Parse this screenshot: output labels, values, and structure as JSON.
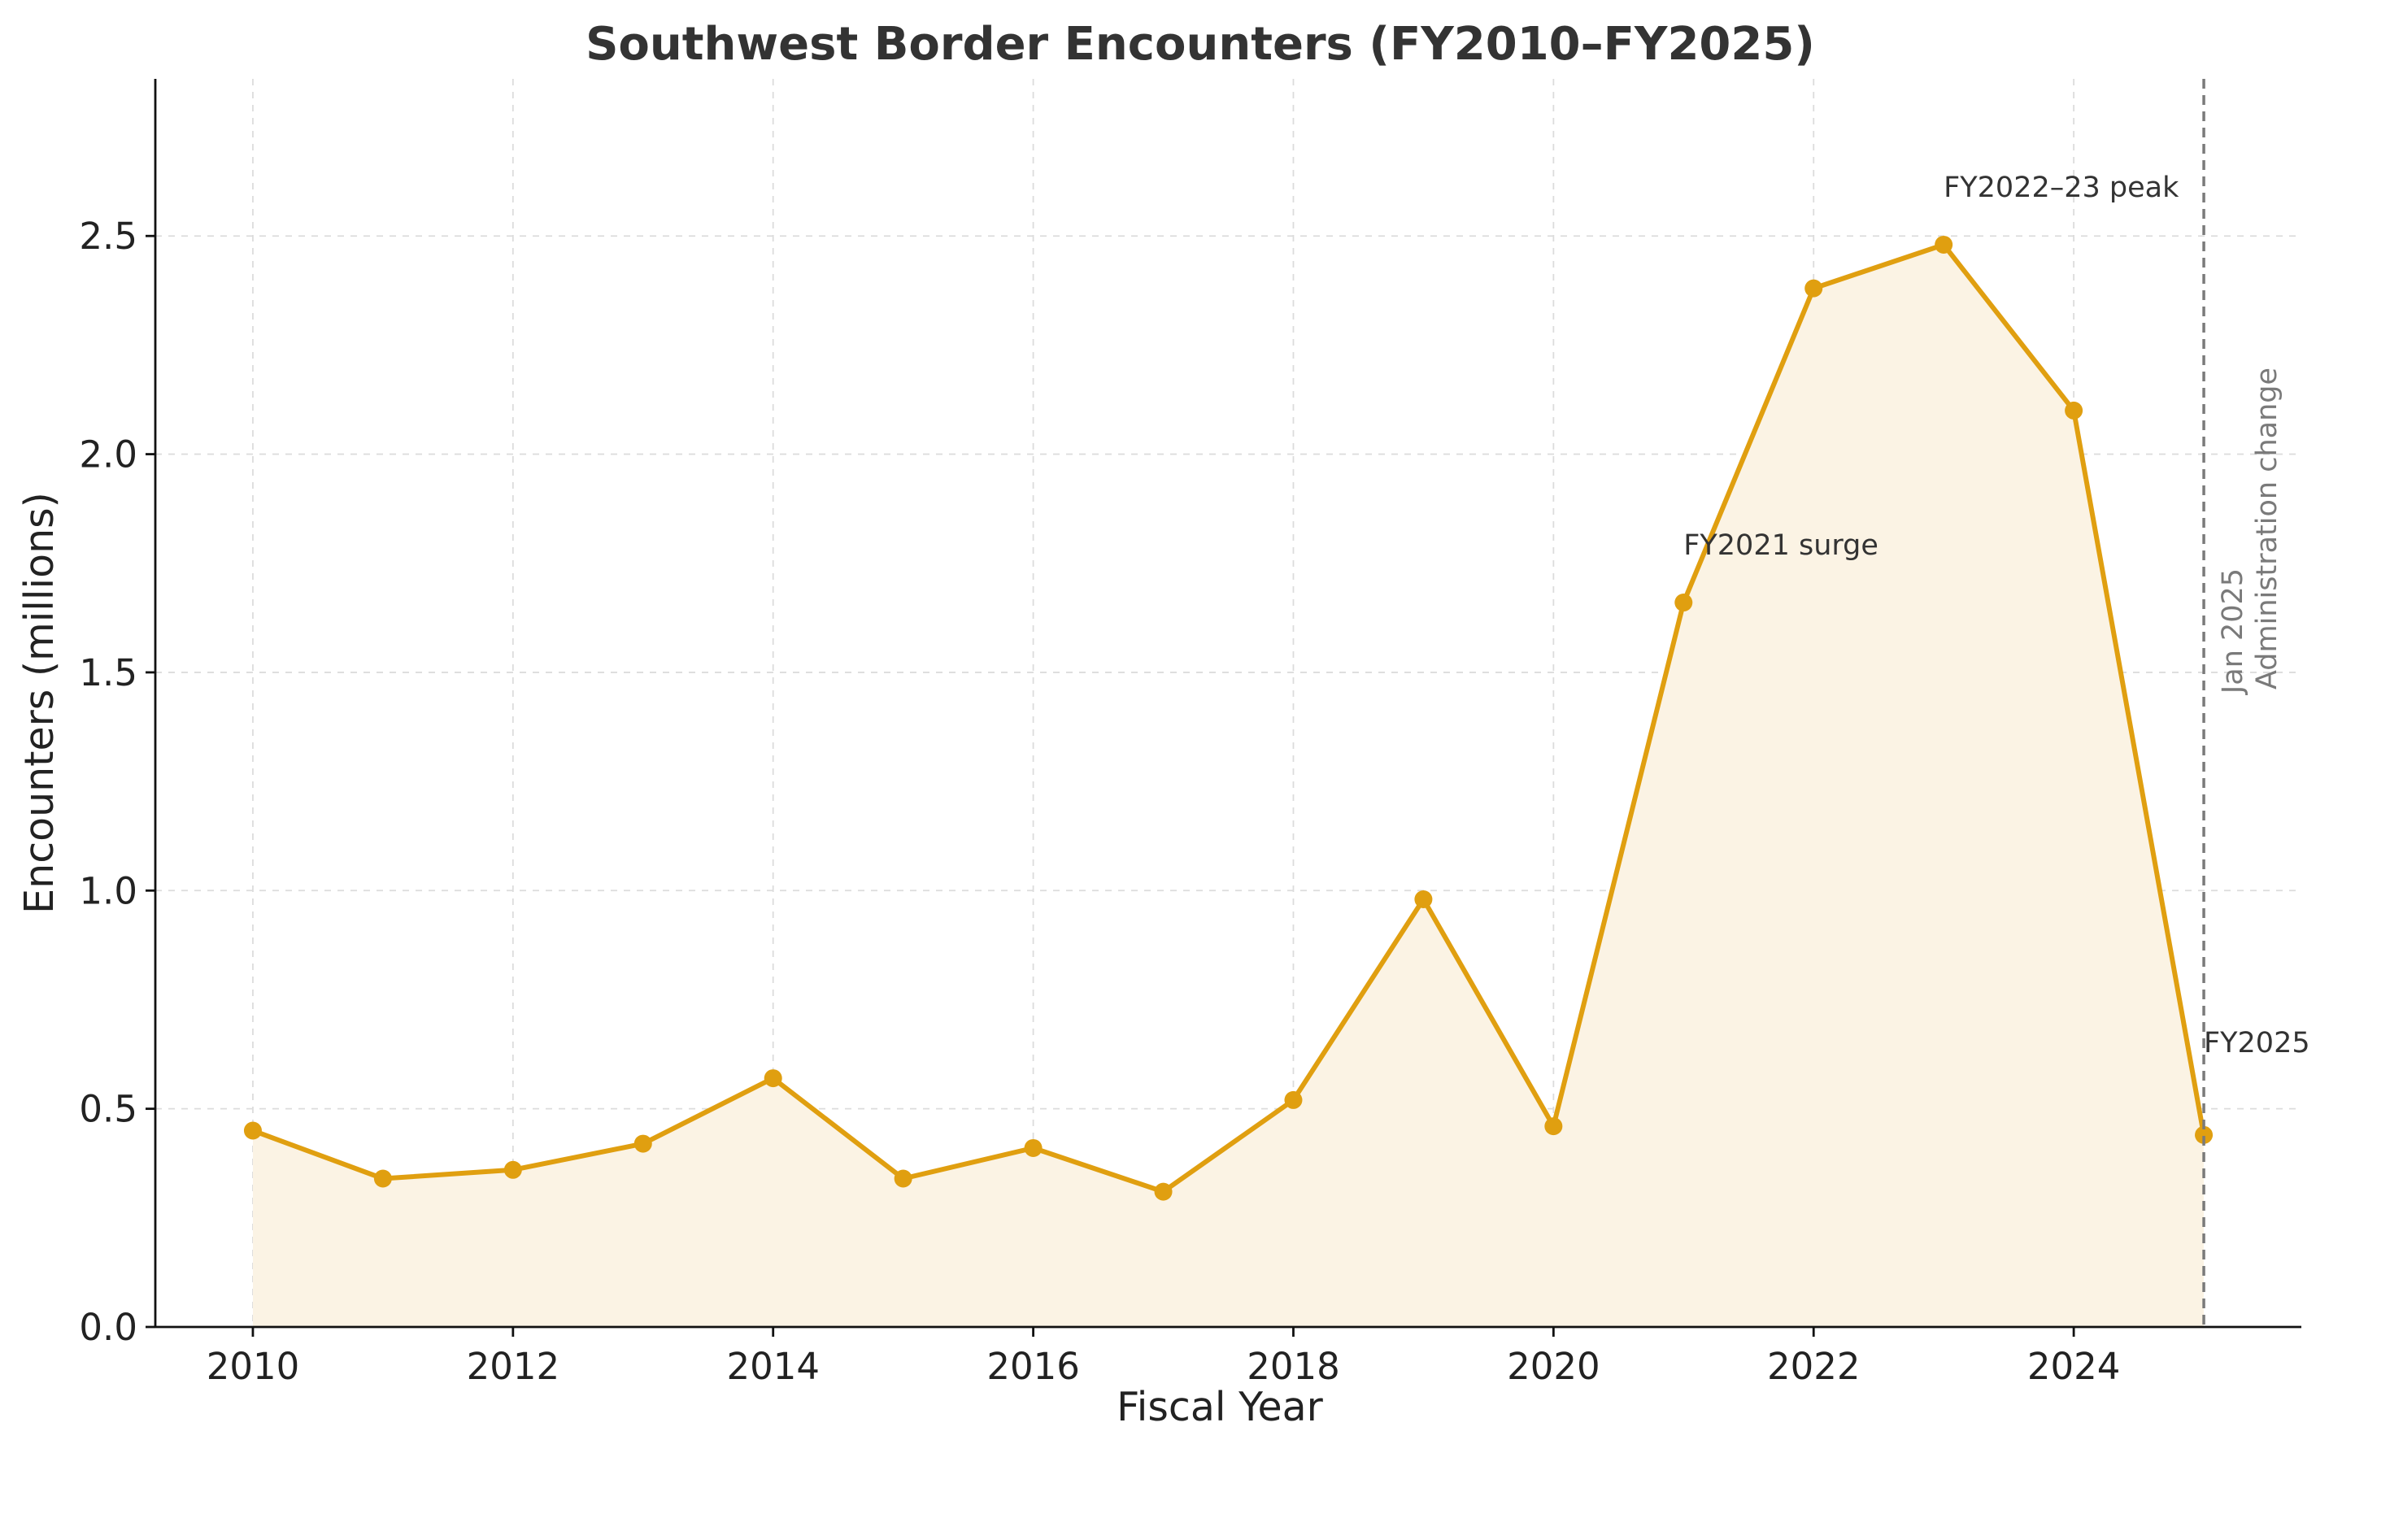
{
  "chart_data": {
    "type": "line",
    "title": "Southwest Border Encounters (FY2010–FY2025)",
    "xlabel": "Fiscal Year",
    "ylabel": "Encounters (millions)",
    "x": [
      2010,
      2011,
      2012,
      2013,
      2014,
      2015,
      2016,
      2017,
      2018,
      2019,
      2020,
      2021,
      2022,
      2023,
      2024,
      2025
    ],
    "series": [
      {
        "values": [
          0.45,
          0.34,
          0.36,
          0.42,
          0.57,
          0.34,
          0.41,
          0.31,
          0.52,
          0.98,
          0.46,
          1.66,
          2.38,
          2.48,
          2.1,
          0.44
        ],
        "color": "#E09F10",
        "fill": "#FBF3E4",
        "markers": true,
        "area_fill": true
      }
    ],
    "xlim": [
      2009.25,
      2025.75
    ],
    "ylim": [
      0,
      2.86
    ],
    "x_ticks": [
      2010,
      2012,
      2014,
      2016,
      2018,
      2020,
      2022,
      2024
    ],
    "x_tick_labels": [
      "2010",
      "2012",
      "2014",
      "2016",
      "2018",
      "2020",
      "2022",
      "2024"
    ],
    "y_ticks": [
      0,
      0.5,
      1.0,
      1.5,
      2.0,
      2.5
    ],
    "y_tick_labels": [
      "0.0",
      "0.5",
      "1.0",
      "1.5",
      "2.0",
      "2.5"
    ],
    "grid": true,
    "annotations": [
      {
        "text": "FY2021 surge",
        "x": 2021,
        "y": 1.77
      },
      {
        "text": "FY2022–23 peak",
        "x": 2023,
        "y": 2.59
      },
      {
        "text": "FY2025",
        "x": 2025,
        "y": 0.63
      }
    ],
    "vertical_line": {
      "x": 2025,
      "color": "#7a7a7a",
      "style": "dashed",
      "label_lines": [
        "Jan 2025",
        "Administration change"
      ]
    }
  }
}
